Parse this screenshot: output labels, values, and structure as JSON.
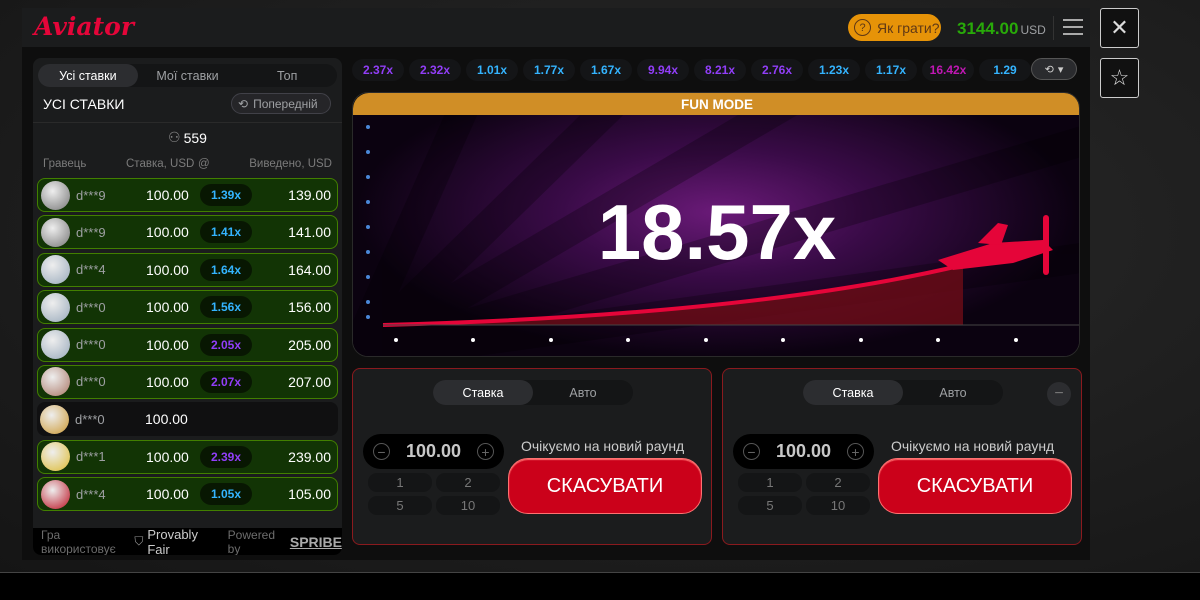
{
  "header": {
    "logo": "Aviator",
    "how_to_play": "Як грати?",
    "balance": "3144.00",
    "currency": "USD"
  },
  "side_buttons": {
    "close": "✕",
    "favorite": "☆"
  },
  "bets_panel": {
    "tabs": [
      "Усі ставки",
      "Мої ставки",
      "Топ"
    ],
    "title": "УСІ СТАВКИ",
    "previous": "Попередній",
    "players": "559",
    "columns": {
      "player": "Гравець",
      "bet": "Ставка, USD",
      "at": "@",
      "cashout": "Виведено, USD"
    },
    "rows": [
      {
        "name": "d***9",
        "bet": "100.00",
        "mult": "1.39x",
        "cashout": "139.00",
        "color": "#34b4ff"
      },
      {
        "name": "d***9",
        "bet": "100.00",
        "mult": "1.41x",
        "cashout": "141.00",
        "color": "#34b4ff"
      },
      {
        "name": "d***4",
        "bet": "100.00",
        "mult": "1.64x",
        "cashout": "164.00",
        "color": "#34b4ff"
      },
      {
        "name": "d***0",
        "bet": "100.00",
        "mult": "1.56x",
        "cashout": "156.00",
        "color": "#34b4ff"
      },
      {
        "name": "d***0",
        "bet": "100.00",
        "mult": "2.05x",
        "cashout": "205.00",
        "color": "#913ef8"
      },
      {
        "name": "d***0",
        "bet": "100.00",
        "mult": "2.07x",
        "cashout": "207.00",
        "color": "#913ef8"
      },
      {
        "name": "d***0",
        "bet": "100.00",
        "mult": "",
        "cashout": "",
        "color": ""
      },
      {
        "name": "d***1",
        "bet": "100.00",
        "mult": "2.39x",
        "cashout": "239.00",
        "color": "#913ef8"
      },
      {
        "name": "d***4",
        "bet": "100.00",
        "mult": "1.05x",
        "cashout": "105.00",
        "color": "#34b4ff"
      }
    ],
    "footer": {
      "uses": "Гра використовує",
      "provably_fair": "Provably Fair",
      "powered_by": "Powered by",
      "brand": "SPRIBE"
    }
  },
  "history": [
    {
      "v": "2.37x",
      "c": "#913ef8"
    },
    {
      "v": "2.32x",
      "c": "#913ef8"
    },
    {
      "v": "1.01x",
      "c": "#34b4ff"
    },
    {
      "v": "1.77x",
      "c": "#34b4ff"
    },
    {
      "v": "1.67x",
      "c": "#34b4ff"
    },
    {
      "v": "9.94x",
      "c": "#913ef8"
    },
    {
      "v": "8.21x",
      "c": "#913ef8"
    },
    {
      "v": "2.76x",
      "c": "#913ef8"
    },
    {
      "v": "1.23x",
      "c": "#34b4ff"
    },
    {
      "v": "1.17x",
      "c": "#34b4ff"
    },
    {
      "v": "16.42x",
      "c": "#c017b4"
    },
    {
      "v": "1.29",
      "c": "#34b4ff"
    }
  ],
  "game": {
    "mode": "FUN MODE",
    "multiplier": "18.57x"
  },
  "bet_panels": [
    {
      "tabs": [
        "Ставка",
        "Авто"
      ],
      "amount": "100.00",
      "quick": [
        "1",
        "2",
        "5",
        "10"
      ],
      "status": "Очікуємо на новий раунд",
      "cancel": "СКАСУВАТИ"
    },
    {
      "tabs": [
        "Ставка",
        "Авто"
      ],
      "amount": "100.00",
      "quick": [
        "1",
        "2",
        "5",
        "10"
      ],
      "status": "Очікуємо на новий раунд",
      "cancel": "СКАСУВАТИ"
    }
  ]
}
